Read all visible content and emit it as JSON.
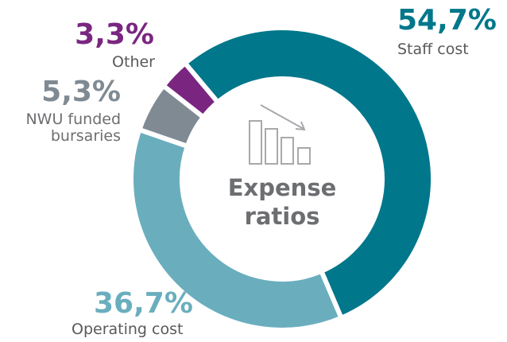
{
  "chart_data": {
    "type": "donut",
    "title": "Expense ratios",
    "categories": [
      "Staff cost",
      "Operating cost",
      "NWU funded bursaries",
      "Other"
    ],
    "values": [
      54.7,
      36.7,
      5.3,
      3.3
    ],
    "value_labels": [
      "54,7%",
      "36,7%",
      "5,3%",
      "3,3%"
    ],
    "colors": [
      "#00778b",
      "#6aaebe",
      "#7f8a93",
      "#7a2681"
    ]
  }
}
